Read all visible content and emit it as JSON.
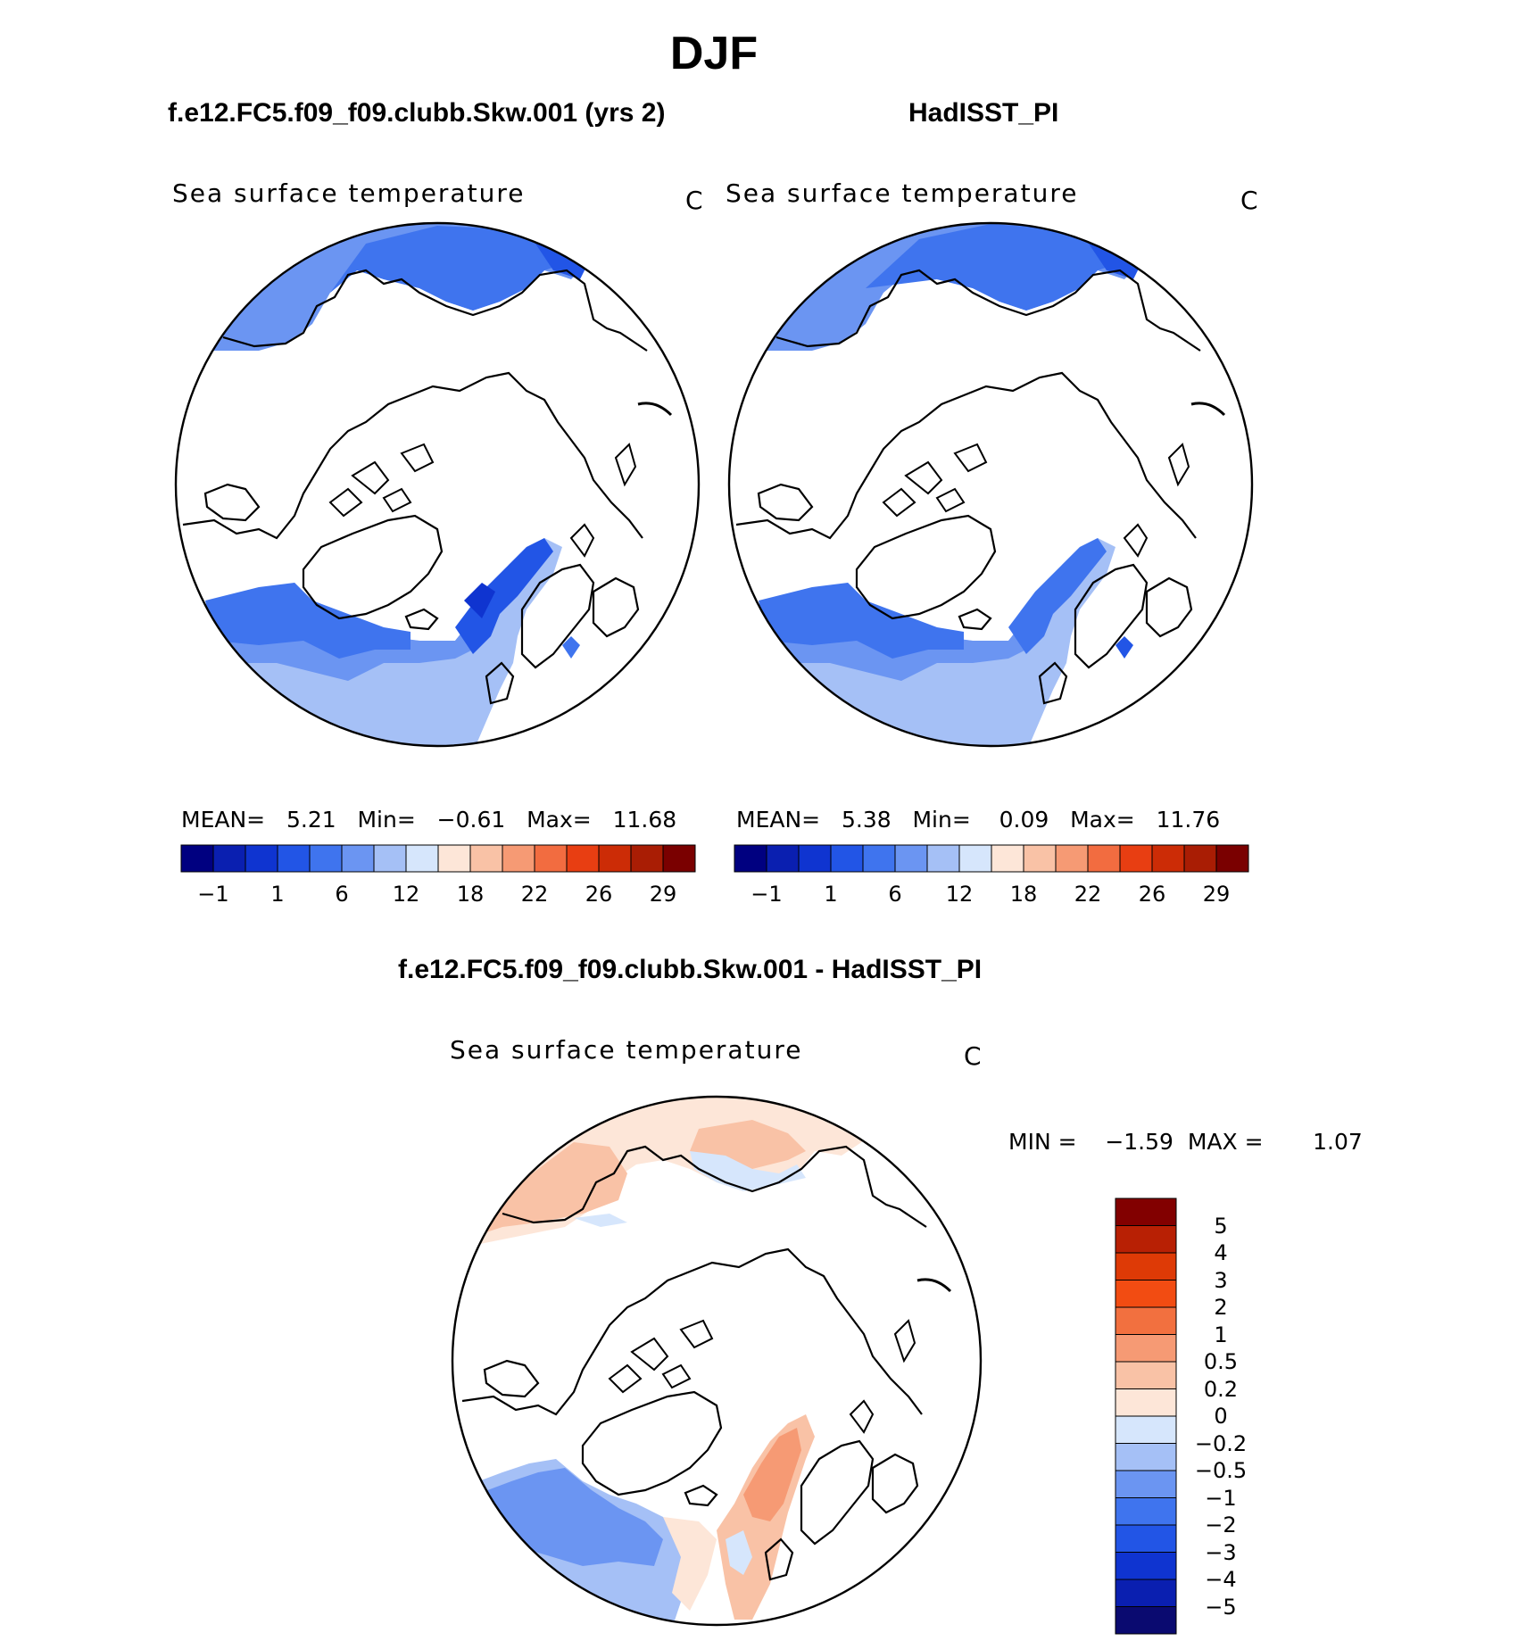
{
  "title": "DJF",
  "colors": {
    "main": [
      "#000080",
      "#0a1fb0",
      "#0f34d0",
      "#2255e6",
      "#3f74ee",
      "#6b95f2",
      "#a5c0f6",
      "#d6e6fc",
      "#fde6d8",
      "#f9c2a6",
      "#f69a74",
      "#f26c40",
      "#e83e12",
      "#cc2c06",
      "#a91d04",
      "#7a0000"
    ],
    "diff": [
      "#0a0a70",
      "#0a1fb0",
      "#0f34d0",
      "#2255e6",
      "#3f74ee",
      "#6b95f2",
      "#a5c0f6",
      "#d6e6fc",
      "#fde6d8",
      "#f9c2a6",
      "#f69a74",
      "#f2703f",
      "#f24c12",
      "#de3a06",
      "#b82004",
      "#820000"
    ]
  },
  "panels": [
    {
      "case_title": "f.e12.FC5.f09_f09.clubb.Skw.001 (yrs 2)",
      "variable": "Sea surface temperature",
      "units": "C",
      "stats": {
        "mean_label": "MEAN=",
        "mean": "5.21",
        "min_label": "Min=",
        "min": "−0.61",
        "max_label": "Max=",
        "max": "11.68"
      }
    },
    {
      "case_title": "HadISST_PI",
      "variable": "Sea surface temperature",
      "units": "C",
      "stats": {
        "mean_label": "MEAN=",
        "mean": "5.38",
        "min_label": "Min=",
        "min": "0.09",
        "max_label": "Max=",
        "max": "11.76"
      }
    }
  ],
  "colorbar_ticks": [
    "−1",
    "1",
    "6",
    "12",
    "18",
    "22",
    "26",
    "29"
  ],
  "diff": {
    "case_title": "f.e12.FC5.f09_f09.clubb.Skw.001 - HadISST_PI",
    "variable": "Sea surface temperature",
    "units": "C",
    "minmax": "MIN =    −1.59  MAX =       1.07",
    "ticks": [
      "5",
      "4",
      "3",
      "2",
      "1",
      "0.5",
      "0.2",
      "0",
      "−0.2",
      "−0.5",
      "−1",
      "−2",
      "−3",
      "−4",
      "−5"
    ]
  }
}
